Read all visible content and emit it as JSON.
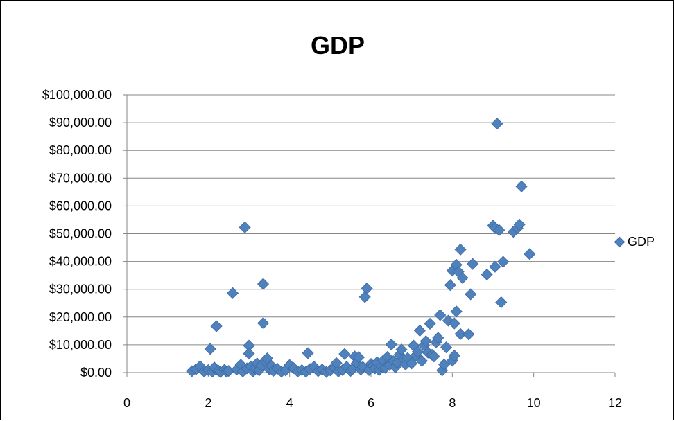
{
  "chart_data": {
    "type": "scatter",
    "title": "GDP",
    "xlabel": "",
    "ylabel": "",
    "xlim": [
      0,
      12
    ],
    "ylim": [
      0,
      100000
    ],
    "x_ticks": [
      "0",
      "2",
      "4",
      "6",
      "8",
      "10",
      "12"
    ],
    "y_ticks": [
      "$0.00",
      "$10,000.00",
      "$20,000.00",
      "$30,000.00",
      "$40,000.00",
      "$50,000.00",
      "$60,000.00",
      "$70,000.00",
      "$80,000.00",
      "$90,000.00",
      "$100,000.00"
    ],
    "grid": "horizontal",
    "legend_position": "right",
    "marker_color": "#4F81BD",
    "series": [
      {
        "name": "GDP",
        "points": [
          [
            1.6,
            500
          ],
          [
            1.7,
            1200
          ],
          [
            1.8,
            2300
          ],
          [
            1.9,
            400
          ],
          [
            2.0,
            900
          ],
          [
            2.05,
            8500
          ],
          [
            2.1,
            300
          ],
          [
            2.15,
            1800
          ],
          [
            2.2,
            16700
          ],
          [
            2.25,
            700
          ],
          [
            2.3,
            200
          ],
          [
            2.4,
            1000
          ],
          [
            2.45,
            300
          ],
          [
            2.5,
            600
          ],
          [
            2.6,
            28600
          ],
          [
            2.7,
            1100
          ],
          [
            2.8,
            2800
          ],
          [
            2.85,
            400
          ],
          [
            2.9,
            52300
          ],
          [
            2.95,
            1500
          ],
          [
            3.0,
            9700
          ],
          [
            3.0,
            6800
          ],
          [
            3.05,
            2200
          ],
          [
            3.1,
            400
          ],
          [
            3.15,
            1600
          ],
          [
            3.2,
            3300
          ],
          [
            3.25,
            800
          ],
          [
            3.3,
            2600
          ],
          [
            3.35,
            31900
          ],
          [
            3.35,
            17800
          ],
          [
            3.4,
            4200
          ],
          [
            3.45,
            5100
          ],
          [
            3.5,
            1200
          ],
          [
            3.55,
            2500
          ],
          [
            3.6,
            600
          ],
          [
            3.7,
            1400
          ],
          [
            3.8,
            300
          ],
          [
            3.9,
            800
          ],
          [
            4.0,
            2700
          ],
          [
            4.1,
            1600
          ],
          [
            4.2,
            400
          ],
          [
            4.3,
            900
          ],
          [
            4.4,
            300
          ],
          [
            4.45,
            7000
          ],
          [
            4.5,
            1300
          ],
          [
            4.6,
            2100
          ],
          [
            4.7,
            500
          ],
          [
            4.8,
            1100
          ],
          [
            4.9,
            200
          ],
          [
            5.0,
            800
          ],
          [
            5.1,
            1700
          ],
          [
            5.15,
            3400
          ],
          [
            5.2,
            400
          ],
          [
            5.3,
            900
          ],
          [
            5.35,
            6700
          ],
          [
            5.4,
            2100
          ],
          [
            5.5,
            600
          ],
          [
            5.55,
            1300
          ],
          [
            5.6,
            5800
          ],
          [
            5.65,
            3400
          ],
          [
            5.7,
            5500
          ],
          [
            5.75,
            1100
          ],
          [
            5.8,
            2000
          ],
          [
            5.85,
            27200
          ],
          [
            5.9,
            30300
          ],
          [
            5.95,
            900
          ],
          [
            6.0,
            3100
          ],
          [
            6.05,
            2400
          ],
          [
            6.1,
            1500
          ],
          [
            6.15,
            3700
          ],
          [
            6.2,
            900
          ],
          [
            6.25,
            2200
          ],
          [
            6.3,
            4300
          ],
          [
            6.35,
            1700
          ],
          [
            6.4,
            5600
          ],
          [
            6.45,
            2700
          ],
          [
            6.5,
            10100
          ],
          [
            6.55,
            4100
          ],
          [
            6.6,
            1900
          ],
          [
            6.65,
            3600
          ],
          [
            6.7,
            6400
          ],
          [
            6.75,
            8300
          ],
          [
            6.8,
            4800
          ],
          [
            6.85,
            2900
          ],
          [
            6.9,
            5200
          ],
          [
            7.0,
            3300
          ],
          [
            7.05,
            9700
          ],
          [
            7.1,
            6100
          ],
          [
            7.15,
            7500
          ],
          [
            7.2,
            15100
          ],
          [
            7.25,
            4200
          ],
          [
            7.3,
            9800
          ],
          [
            7.35,
            11300
          ],
          [
            7.4,
            7200
          ],
          [
            7.45,
            17600
          ],
          [
            7.5,
            6400
          ],
          [
            7.55,
            5800
          ],
          [
            7.6,
            10900
          ],
          [
            7.65,
            12500
          ],
          [
            7.7,
            20700
          ],
          [
            7.75,
            800
          ],
          [
            7.8,
            2900
          ],
          [
            7.85,
            9100
          ],
          [
            7.9,
            18700
          ],
          [
            7.95,
            31500
          ],
          [
            8.0,
            36700
          ],
          [
            8.0,
            4300
          ],
          [
            8.05,
            17700
          ],
          [
            8.05,
            6100
          ],
          [
            8.1,
            22000
          ],
          [
            8.1,
            38800
          ],
          [
            8.15,
            36300
          ],
          [
            8.2,
            13900
          ],
          [
            8.2,
            44300
          ],
          [
            8.25,
            34100
          ],
          [
            8.4,
            13800
          ],
          [
            8.45,
            28200
          ],
          [
            8.5,
            39100
          ],
          [
            8.85,
            35300
          ],
          [
            9.0,
            52900
          ],
          [
            9.05,
            52100
          ],
          [
            9.05,
            38100
          ],
          [
            9.1,
            89600
          ],
          [
            9.15,
            51300
          ],
          [
            9.2,
            25300
          ],
          [
            9.25,
            39900
          ],
          [
            9.5,
            50700
          ],
          [
            9.6,
            52000
          ],
          [
            9.65,
            53300
          ],
          [
            9.7,
            67000
          ],
          [
            9.9,
            42700
          ]
        ]
      }
    ]
  }
}
